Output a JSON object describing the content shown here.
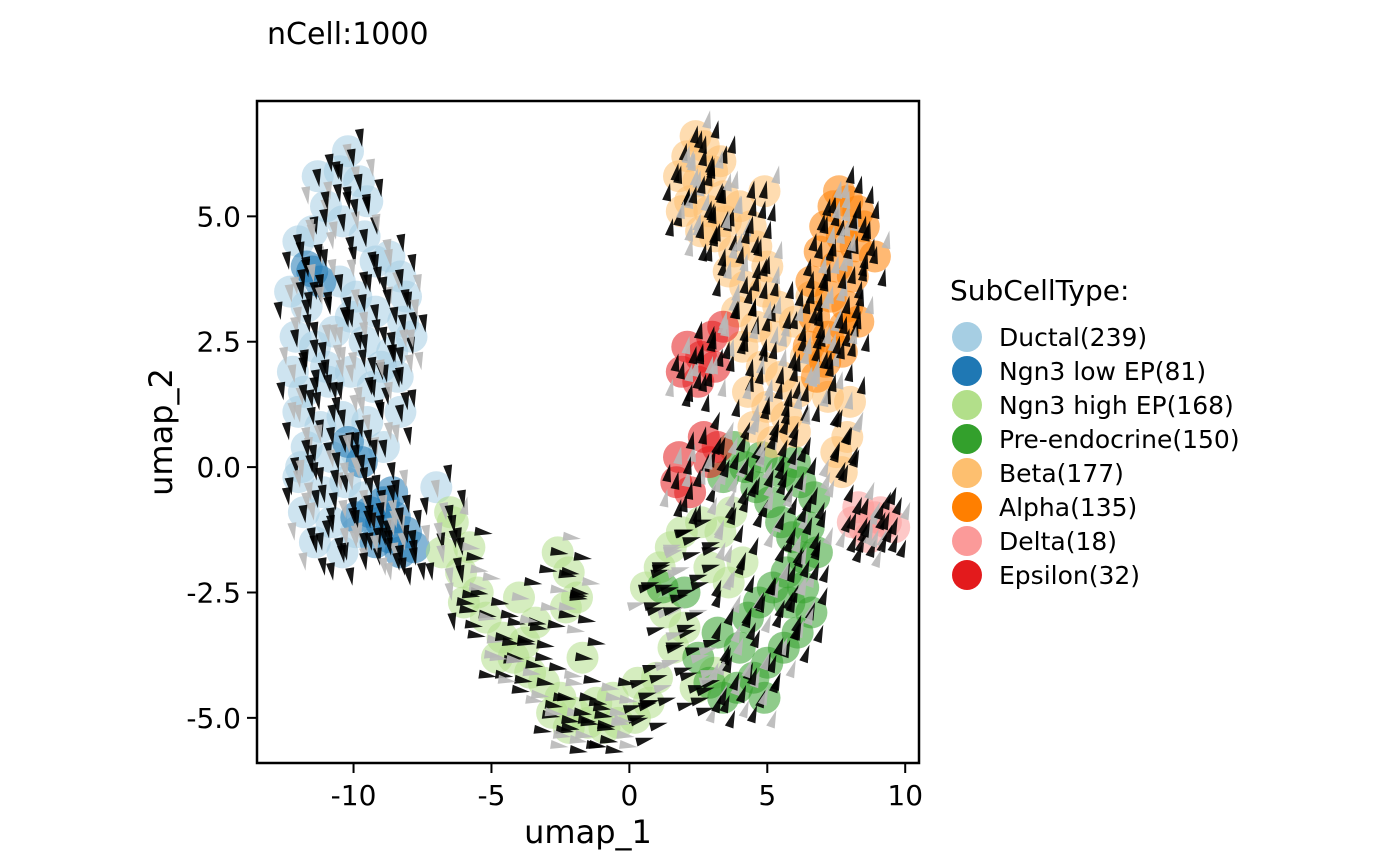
{
  "chart_data": {
    "type": "scatter",
    "subtitle": "nCell:1000",
    "xlabel": "umap_1",
    "ylabel": "umap_2",
    "xlim": [
      -13.5,
      10.5
    ],
    "ylim": [
      -5.9,
      7.3
    ],
    "xticks": [
      -10,
      -5,
      0,
      5,
      10
    ],
    "xtick_labels": [
      "-10",
      "-5",
      "0",
      "5",
      "10"
    ],
    "yticks": [
      -5.0,
      -2.5,
      0.0,
      2.5,
      5.0
    ],
    "ytick_labels": [
      "-5.0",
      "-2.5",
      "0.0",
      "2.5",
      "5.0"
    ],
    "grid": false,
    "overlay": "velocity arrows (black/grey arrowheads) over all cells",
    "legend": {
      "title": "SubCellType:",
      "placement": "right",
      "entries": [
        {
          "label": "Ductal(239)",
          "color": "#a6cee3"
        },
        {
          "label": "Ngn3 low EP(81)",
          "color": "#1f78b4"
        },
        {
          "label": "Ngn3 high EP(168)",
          "color": "#b2df8a"
        },
        {
          "label": "Pre-endocrine(150)",
          "color": "#33a02c"
        },
        {
          "label": "Beta(177)",
          "color": "#fdbf6f"
        },
        {
          "label": "Alpha(135)",
          "color": "#ff7f00"
        },
        {
          "label": "Delta(18)",
          "color": "#fb9a99"
        },
        {
          "label": "Epsilon(32)",
          "color": "#e31a1c"
        }
      ]
    },
    "series": [
      {
        "name": "Ductal(239)",
        "color": "#a6cee3",
        "points": [
          [
            -10.2,
            6.3
          ],
          [
            -10.5,
            5.9
          ],
          [
            -9.8,
            5.7
          ],
          [
            -11,
            5.2
          ],
          [
            -9.5,
            5.3
          ],
          [
            -12,
            4.5
          ],
          [
            -11.5,
            4.7
          ],
          [
            -10.4,
            4.9
          ],
          [
            -9.6,
            4.6
          ],
          [
            -8.7,
            4.2
          ],
          [
            -8.3,
            3.8
          ],
          [
            -8.1,
            3.4
          ],
          [
            -12.3,
            3.5
          ],
          [
            -11.7,
            3.2
          ],
          [
            -10.5,
            3.7
          ],
          [
            -9.9,
            3.4
          ],
          [
            -9.2,
            3.1
          ],
          [
            -8.2,
            2.9
          ],
          [
            -7.9,
            2.6
          ],
          [
            -12.1,
            2.6
          ],
          [
            -11.4,
            2.4
          ],
          [
            -10.7,
            2.7
          ],
          [
            -9.6,
            2.5
          ],
          [
            -8.6,
            2.3
          ],
          [
            -12.2,
            1.9
          ],
          [
            -11.8,
            1.5
          ],
          [
            -10.9,
            1.7
          ],
          [
            -10.1,
            1.9
          ],
          [
            -9.3,
            1.6
          ],
          [
            -8.4,
            1.8
          ],
          [
            -12,
            1.1
          ],
          [
            -11.2,
            0.8
          ],
          [
            -10.4,
            1
          ],
          [
            -9.5,
            0.9
          ],
          [
            -8.3,
            1.1
          ],
          [
            -11.7,
            0.4
          ],
          [
            -10.8,
            0.2
          ],
          [
            -9.9,
            0.3
          ],
          [
            -8.9,
            0.4
          ],
          [
            -12,
            -0.2
          ],
          [
            -11.1,
            -0.5
          ],
          [
            -10.3,
            -0.3
          ],
          [
            -9.6,
            -0.6
          ],
          [
            -11.8,
            -0.9
          ],
          [
            -10.8,
            -1.1
          ],
          [
            -9.9,
            -1.3
          ],
          [
            -11.4,
            -1.5
          ],
          [
            -10.4,
            -1.7
          ],
          [
            -11.9,
            0
          ],
          [
            -10.1,
            3
          ],
          [
            -11,
            2
          ],
          [
            -9,
            2
          ],
          [
            -11.3,
            5.8
          ],
          [
            -9.2,
            4.1
          ],
          [
            -7,
            -0.4
          ]
        ]
      },
      {
        "name": "Ngn3 low EP(81)",
        "color": "#1f78b4",
        "points": [
          [
            -9.4,
            -0.9
          ],
          [
            -9,
            -1.1
          ],
          [
            -8.5,
            -1
          ],
          [
            -8.1,
            -1.3
          ],
          [
            -8.7,
            -1.4
          ],
          [
            -9.2,
            -1.5
          ],
          [
            -8.3,
            -1.7
          ],
          [
            -7.8,
            -1.6
          ],
          [
            -8.9,
            -0.7
          ],
          [
            -11.7,
            4
          ],
          [
            -11.2,
            3.7
          ],
          [
            -10.2,
            0.5
          ],
          [
            -9.7,
            0.1
          ],
          [
            -8.6,
            -0.5
          ],
          [
            -11.5,
            3.9
          ],
          [
            -9.9,
            -1
          ]
        ]
      },
      {
        "name": "Ngn3 high EP(168)",
        "color": "#b2df8a",
        "points": [
          [
            -6.4,
            -1.1
          ],
          [
            -6.8,
            -1.7
          ],
          [
            -6.1,
            -2.1
          ],
          [
            -5.5,
            -2.5
          ],
          [
            -5.2,
            -3
          ],
          [
            -4.6,
            -3.4
          ],
          [
            -4.2,
            -3.8
          ],
          [
            -3.6,
            -4.1
          ],
          [
            -3.1,
            -4.3
          ],
          [
            -2.5,
            -4.6
          ],
          [
            -2,
            -4.9
          ],
          [
            -1.5,
            -5.1
          ],
          [
            -0.9,
            -5.2
          ],
          [
            -0.4,
            -5.1
          ],
          [
            0.2,
            -5
          ],
          [
            0.7,
            -4.7
          ],
          [
            -2.8,
            -4.9
          ],
          [
            -2.2,
            -5.2
          ],
          [
            -1.2,
            -4.7
          ],
          [
            -0.6,
            -4.6
          ],
          [
            0.3,
            -4.3
          ],
          [
            1,
            -4.2
          ],
          [
            -4.8,
            -3.8
          ],
          [
            -3.8,
            -3.5
          ],
          [
            -6,
            -2.7
          ],
          [
            -5.8,
            -1.6
          ],
          [
            -2.2,
            -2.1
          ],
          [
            -1.9,
            -2.6
          ],
          [
            -2.3,
            -2.8
          ],
          [
            1.6,
            -3.6
          ],
          [
            2,
            -3.2
          ],
          [
            1.3,
            -2.9
          ],
          [
            0.6,
            -2.4
          ],
          [
            1.1,
            -2
          ],
          [
            1.5,
            -1.6
          ],
          [
            1.9,
            -1.3
          ],
          [
            2.6,
            -1.1
          ],
          [
            3.3,
            -1.3
          ],
          [
            3.7,
            -0.9
          ],
          [
            2.9,
            -2
          ],
          [
            3.6,
            -2.3
          ],
          [
            4.1,
            -1.9
          ],
          [
            -3.4,
            -3.1
          ],
          [
            -4,
            -2.6
          ],
          [
            -1.7,
            -3.8
          ],
          [
            2.4,
            -4.4
          ],
          [
            3.1,
            -4.1
          ],
          [
            -6.5,
            -0.9
          ],
          [
            -2.6,
            -1.7
          ]
        ]
      },
      {
        "name": "Pre-endocrine(150)",
        "color": "#33a02c",
        "points": [
          [
            3.8,
            0.4
          ],
          [
            4.2,
            0
          ],
          [
            4.6,
            -0.4
          ],
          [
            5.1,
            -0.7
          ],
          [
            5.5,
            -1.1
          ],
          [
            5.9,
            -1.4
          ],
          [
            6.3,
            -1.8
          ],
          [
            5.7,
            -2.1
          ],
          [
            5.2,
            -2.4
          ],
          [
            4.7,
            -2.7
          ],
          [
            4.3,
            -3
          ],
          [
            5.8,
            -2.7
          ],
          [
            6.3,
            -2.4
          ],
          [
            6.6,
            -2.9
          ],
          [
            6.1,
            -3.3
          ],
          [
            5.6,
            -3.6
          ],
          [
            5,
            -3.9
          ],
          [
            4.5,
            -4.2
          ],
          [
            3.9,
            -4.4
          ],
          [
            3.4,
            -4.6
          ],
          [
            2.9,
            -4.3
          ],
          [
            4,
            -3.6
          ],
          [
            6.5,
            -1.2
          ],
          [
            6.7,
            -0.6
          ],
          [
            6,
            0.1
          ],
          [
            5.5,
            -0.1
          ],
          [
            4.8,
            0.2
          ],
          [
            3.4,
            -0.2
          ],
          [
            2,
            -2.5
          ],
          [
            1.2,
            -2.4
          ],
          [
            4.9,
            -4.6
          ],
          [
            6.2,
            -0.3
          ],
          [
            6.8,
            -1.7
          ],
          [
            2.5,
            -3.8
          ],
          [
            3.2,
            -3.3
          ]
        ]
      },
      {
        "name": "Beta(177)",
        "color": "#fdbf6f",
        "points": [
          [
            2.4,
            6.6
          ],
          [
            2.1,
            6.2
          ],
          [
            2.7,
            6.4
          ],
          [
            1.8,
            5.8
          ],
          [
            2.5,
            5.7
          ],
          [
            3,
            5.9
          ],
          [
            3.4,
            5.4
          ],
          [
            2.2,
            5.3
          ],
          [
            2.9,
            5.1
          ],
          [
            3.5,
            4.9
          ],
          [
            4,
            5.2
          ],
          [
            4.4,
            4.8
          ],
          [
            3.1,
            4.6
          ],
          [
            3.8,
            4.3
          ],
          [
            4.6,
            4.4
          ],
          [
            5,
            4
          ],
          [
            3.6,
            3.9
          ],
          [
            4.2,
            3.6
          ],
          [
            4.9,
            3.5
          ],
          [
            5.4,
            3.2
          ],
          [
            3.9,
            3.1
          ],
          [
            4.6,
            2.8
          ],
          [
            5.3,
            2.6
          ],
          [
            6,
            2.9
          ],
          [
            4.1,
            2.4
          ],
          [
            4.8,
            2
          ],
          [
            5.5,
            1.8
          ],
          [
            6.1,
            1.5
          ],
          [
            4.3,
            1.5
          ],
          [
            5,
            1.2
          ],
          [
            5.7,
            1.0
          ],
          [
            4.5,
            0.8
          ],
          [
            5.2,
            0.5
          ],
          [
            6,
            0.7
          ],
          [
            6.4,
            2.2
          ],
          [
            7.7,
            -0.1
          ],
          [
            7.9,
            0.6
          ],
          [
            8,
            1.3
          ],
          [
            7.5,
            0.3
          ],
          [
            7.2,
            1.4
          ],
          [
            1.9,
            5.1
          ],
          [
            2.6,
            4.7
          ],
          [
            4.9,
            5.5
          ],
          [
            3.3,
            6.1
          ],
          [
            6.6,
            3.4
          ]
        ]
      },
      {
        "name": "Alpha(135)",
        "color": "#ff7f00",
        "points": [
          [
            7.4,
            5.2
          ],
          [
            7.9,
            5.3
          ],
          [
            8.3,
            5.1
          ],
          [
            7.1,
            4.8
          ],
          [
            7.7,
            4.6
          ],
          [
            8.2,
            4.4
          ],
          [
            6.9,
            4.3
          ],
          [
            7.5,
            4
          ],
          [
            8.1,
            3.8
          ],
          [
            6.6,
            3.7
          ],
          [
            7.3,
            3.4
          ],
          [
            7.9,
            3.2
          ],
          [
            6.7,
            3
          ],
          [
            7.2,
            2.6
          ],
          [
            7.8,
            2.8
          ],
          [
            8.3,
            2.9
          ],
          [
            6.5,
            2.4
          ],
          [
            7.1,
            2.1
          ],
          [
            7.7,
            2.3
          ],
          [
            6.8,
            1.8
          ],
          [
            8.5,
            4.8
          ],
          [
            8.9,
            4.2
          ],
          [
            7.6,
            5.5
          ]
        ]
      },
      {
        "name": "Delta(18)",
        "color": "#fb9a99",
        "points": [
          [
            8.1,
            -1.1
          ],
          [
            8.5,
            -1.2
          ],
          [
            8.9,
            -1.0
          ],
          [
            9.3,
            -1.1
          ],
          [
            9.6,
            -1.2
          ],
          [
            8.7,
            -1.4
          ],
          [
            9.1,
            -0.9
          ],
          [
            8.3,
            -0.8
          ]
        ]
      },
      {
        "name": "Epsilon(32)",
        "color": "#e31a1c",
        "points": [
          [
            2.1,
            2.4
          ],
          [
            2.6,
            2.2
          ],
          [
            3,
            2.6
          ],
          [
            3.4,
            2.8
          ],
          [
            1.9,
            1.9
          ],
          [
            2.5,
            1.7
          ],
          [
            3.1,
            2
          ],
          [
            2.7,
            0.6
          ],
          [
            3.2,
            0.4
          ],
          [
            1.8,
            0.2
          ],
          [
            1.7,
            -0.3
          ],
          [
            2.2,
            -0.5
          ],
          [
            2.9,
            0.1
          ]
        ]
      }
    ]
  }
}
